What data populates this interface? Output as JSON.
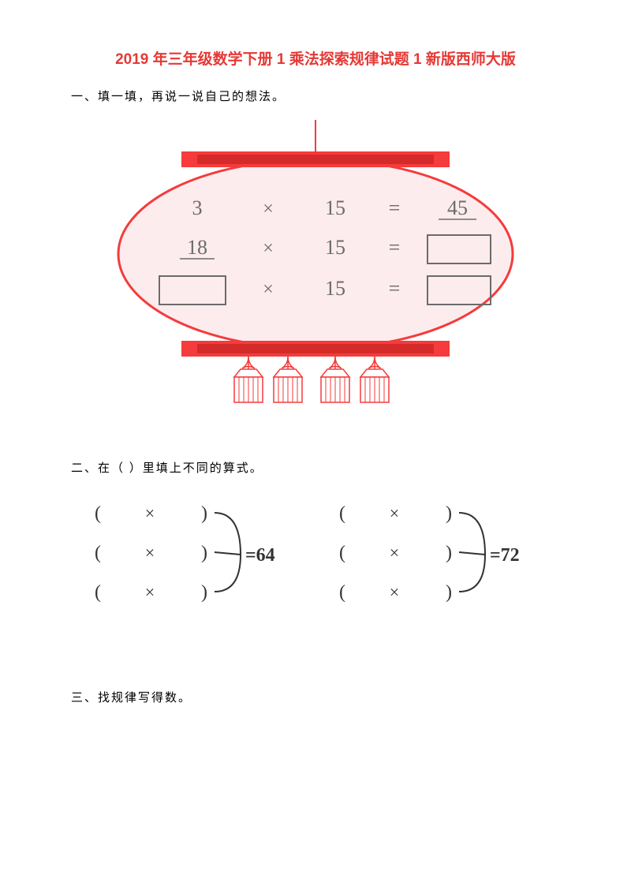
{
  "title": "2019 年三年级数学下册 1 乘法探索规律试题 1 新版西师大版",
  "title_color": "#e53935",
  "section1": {
    "heading": "一、填一填，再说一说自己的想法。",
    "lantern": {
      "body_fill": "#fdecee",
      "body_stroke": "#f53b3b",
      "body_stroke_width": 3,
      "cap_fill": "#f53b3b",
      "cap_inner": "#d42a2a",
      "hanger_stroke": "#f53b3b",
      "tassel_stroke": "#f53b3b",
      "tassel_fill": "#ffffff",
      "text_color": "#6b6b6b",
      "box_stroke": "#6b6b6b",
      "equation_font_size": 26,
      "rows": [
        {
          "a": "3",
          "op": "×",
          "b": "15",
          "eq": "=",
          "result": "45",
          "a_box": false,
          "result_box": false,
          "a_underline": false
        },
        {
          "a": "18",
          "op": "×",
          "b": "15",
          "eq": "=",
          "result": "",
          "a_box": false,
          "result_box": true,
          "a_underline": true
        },
        {
          "a": "",
          "op": "×",
          "b": "15",
          "eq": "=",
          "result": "",
          "a_box": true,
          "result_box": true,
          "a_underline": false
        }
      ]
    }
  },
  "section2": {
    "heading": "二、在（  ）里填上不同的算式。",
    "text_color": "#333333",
    "bracket_stroke": "#333333",
    "font_size": 24,
    "groups": [
      {
        "result": "=64"
      },
      {
        "result": "=72"
      }
    ],
    "row_template": {
      "open": "(",
      "op": "×",
      "close": ")"
    }
  },
  "section3": {
    "heading": "三、找规律写得数。"
  }
}
